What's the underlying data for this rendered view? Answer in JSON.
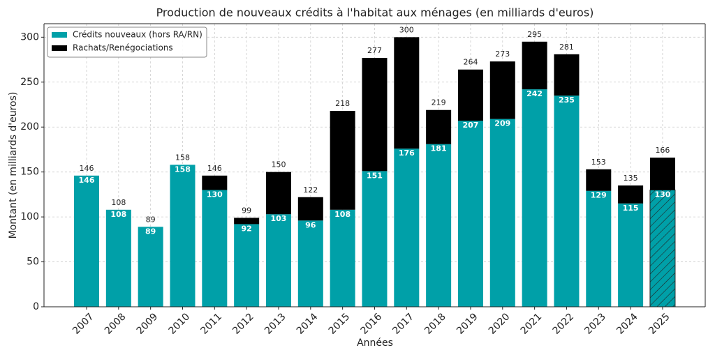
{
  "chart_data": {
    "type": "stacked_bar",
    "title": "Production de nouveaux crédits à l'habitat aux ménages (en milliards d'euros)",
    "x_label": "Années",
    "y_label": "Montant (en milliards d'euros)",
    "categories": [
      "2007",
      "2008",
      "2009",
      "2010",
      "2011",
      "2012",
      "2013",
      "2014",
      "2015",
      "2016",
      "2017",
      "2018",
      "2019",
      "2020",
      "2021",
      "2022",
      "2023",
      "2024",
      "2025"
    ],
    "series": [
      {
        "name": "Crédits nouveaux (hors RA/RN)",
        "color": "#00a0a8",
        "values": [
          146,
          108,
          89,
          158,
          130,
          92,
          103,
          96,
          108,
          151,
          176,
          181,
          207,
          209,
          242,
          235,
          129,
          115,
          130
        ]
      },
      {
        "name": "Rachats/Renégociations",
        "color": "#000000",
        "values": [
          0,
          0,
          0,
          0,
          16,
          7,
          47,
          26,
          110,
          126,
          124,
          38,
          57,
          64,
          53,
          46,
          24,
          20,
          36
        ]
      }
    ],
    "totals": [
      146,
      108,
      89,
      158,
      146,
      99,
      150,
      122,
      218,
      277,
      300,
      219,
      264,
      273,
      295,
      281,
      153,
      135,
      166
    ],
    "hatched": [
      false,
      false,
      false,
      false,
      false,
      false,
      false,
      false,
      false,
      false,
      false,
      false,
      false,
      false,
      false,
      false,
      false,
      false,
      true
    ],
    "ylim": [
      0,
      315
    ],
    "yticks": [
      0,
      50,
      100,
      150,
      200,
      250,
      300
    ],
    "grid": true,
    "legend": "upper left"
  }
}
